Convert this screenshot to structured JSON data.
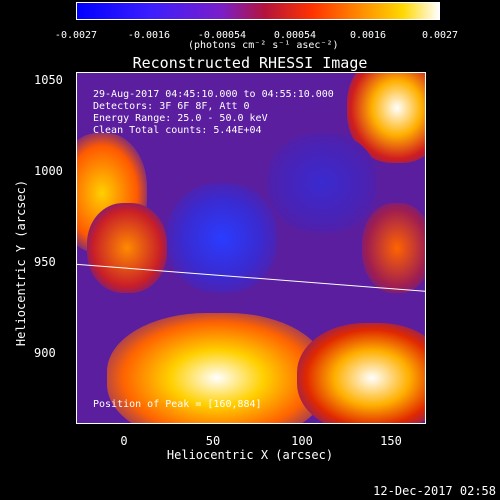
{
  "colorbar": {
    "ticks": [
      "-0.0027",
      "-0.0016",
      "-0.00054",
      "0.00054",
      "0.0016",
      "0.0027"
    ],
    "units": "(photons cm⁻² s⁻¹ asec⁻²)"
  },
  "title": "Reconstructed RHESSI Image",
  "info": {
    "time_range": "29-Aug-2017 04:45:10.000 to 04:55:10.000",
    "detectors": "Detectors: 3F 6F 8F, Att 0",
    "energy": "Energy Range: 25.0 - 50.0 keV",
    "method": "Clean    Total counts: 5.44E+04",
    "peak": "Position of Peak = [160,884]"
  },
  "timestamp": "12-Dec-2017 02:58",
  "chart_data": {
    "type": "heatmap",
    "title": "Reconstructed RHESSI Image",
    "xlabel": "Heliocentric X (arcsec)",
    "ylabel": "Heliocentric Y (arcsec)",
    "xlim": [
      -27,
      168
    ],
    "ylim": [
      860,
      1055
    ],
    "xticks": [
      "0",
      "50",
      "100",
      "150"
    ],
    "yticks": [
      "900",
      "950",
      "1000",
      "1050"
    ],
    "colorbar_range": [
      -0.0027,
      0.0027
    ],
    "limb_line": {
      "x": [
        -27,
        168
      ],
      "y": [
        949,
        934
      ]
    },
    "peak_position": [
      160,
      884
    ]
  }
}
